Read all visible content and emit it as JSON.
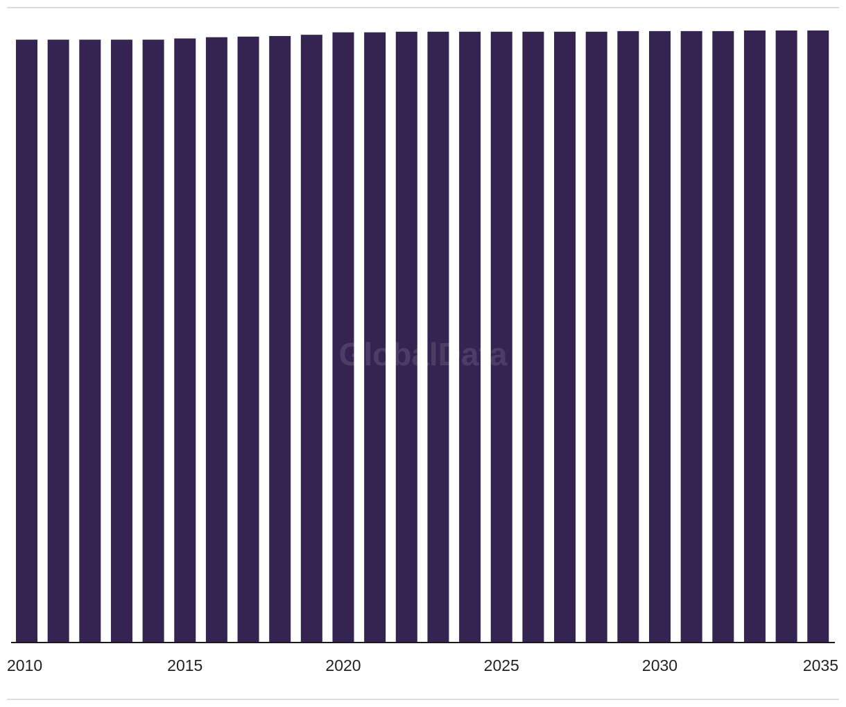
{
  "chart_data": {
    "type": "bar",
    "categories": [
      "2010",
      "2011",
      "2012",
      "2013",
      "2014",
      "2015",
      "2016",
      "2017",
      "2018",
      "2019",
      "2020",
      "2021",
      "2022",
      "2023",
      "2024",
      "2025",
      "2026",
      "2027",
      "2028",
      "2029",
      "2030",
      "2031",
      "2032",
      "2033",
      "2034",
      "2035"
    ],
    "values": [
      98.6,
      98.6,
      98.6,
      98.6,
      98.6,
      98.8,
      99.0,
      99.1,
      99.2,
      99.4,
      99.8,
      99.8,
      99.9,
      99.9,
      99.9,
      99.9,
      99.9,
      99.9,
      99.9,
      100.0,
      100.0,
      100.0,
      100.0,
      100.1,
      100.1,
      100.1
    ],
    "x_tick_labels": [
      "2010",
      "2015",
      "2020",
      "2025",
      "2030",
      "2035"
    ],
    "ylim": [
      0,
      100.1
    ],
    "grid": false,
    "legend": "none",
    "title": "",
    "xlabel": "",
    "ylabel": "",
    "bar_color": "#352351",
    "axis_color": "#1a1a1a",
    "rule_color": "#dddddd"
  },
  "watermark": "GlobalData"
}
